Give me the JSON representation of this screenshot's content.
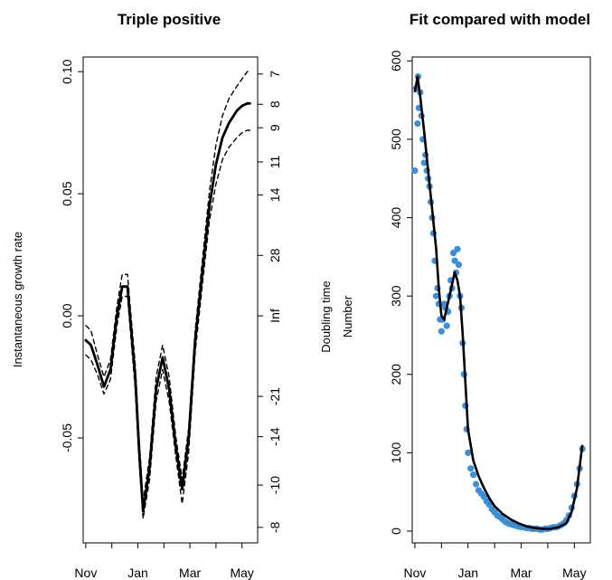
{
  "chart_data": [
    {
      "type": "line",
      "title": "Triple positive",
      "ylabel": "Instantaneous growth rate",
      "y2label": "Doubling time",
      "x_ticks": [
        "Nov",
        "Jan",
        "Mar",
        "May"
      ],
      "y_ticks": [
        "-0.05",
        "0.00",
        "0.05",
        "0.10"
      ],
      "y_tick_values": [
        -0.05,
        0.0,
        0.05,
        0.1
      ],
      "y2_ticks": [
        "7",
        "8",
        "9",
        "11",
        "14",
        "28",
        "Inf",
        "-21",
        "-14",
        "-10",
        "-8"
      ],
      "y2_tick_values": [
        7,
        8,
        9,
        11,
        14,
        28,
        "Inf",
        -21,
        -14,
        -10,
        -8
      ],
      "x_unit": "month index (Nov = 0)",
      "xlim": [
        -0.1,
        6.6
      ],
      "ylim": [
        -0.093,
        0.106
      ],
      "grid": false,
      "series": [
        {
          "line_style": "solid",
          "x": [
            0,
            0.2,
            0.45,
            0.7,
            0.95,
            1.2,
            1.4,
            1.6,
            1.9,
            2.05,
            2.2,
            2.45,
            2.7,
            2.95,
            3.2,
            3.45,
            3.7,
            3.95,
            4.2,
            4.5,
            4.75,
            5.0,
            5.25,
            5.5,
            5.8,
            6.0,
            6.2,
            6.3
          ],
          "y": [
            -0.01,
            -0.012,
            -0.02,
            -0.029,
            -0.022,
            0.0,
            0.012,
            0.012,
            -0.025,
            -0.055,
            -0.08,
            -0.062,
            -0.03,
            -0.017,
            -0.03,
            -0.053,
            -0.071,
            -0.05,
            -0.01,
            0.02,
            0.045,
            0.062,
            0.073,
            0.079,
            0.084,
            0.086,
            0.087,
            0.087
          ]
        },
        {
          "line_style": "dashed",
          "x": [
            0,
            0.2,
            0.45,
            0.7,
            0.95,
            1.2,
            1.4,
            1.6,
            1.9,
            2.05,
            2.2,
            2.45,
            2.7,
            2.95,
            3.2,
            3.45,
            3.7,
            3.95,
            4.2,
            4.5,
            4.75,
            5.0,
            5.25,
            5.5,
            5.8,
            6.0,
            6.2,
            6.3
          ],
          "y": [
            -0.004,
            -0.006,
            -0.016,
            -0.025,
            -0.018,
            0.004,
            0.017,
            0.017,
            -0.02,
            -0.05,
            -0.076,
            -0.058,
            -0.025,
            -0.012,
            -0.025,
            -0.049,
            -0.067,
            -0.046,
            -0.006,
            0.025,
            0.051,
            0.07,
            0.082,
            0.089,
            0.094,
            0.097,
            0.1,
            0.1
          ]
        },
        {
          "line_style": "dashed",
          "x": [
            0,
            0.2,
            0.45,
            0.7,
            0.95,
            1.2,
            1.4,
            1.6,
            1.9,
            2.05,
            2.2,
            2.45,
            2.7,
            2.95,
            3.2,
            3.45,
            3.7,
            3.95,
            4.2,
            4.5,
            4.75,
            5.0,
            5.25,
            5.5,
            5.8,
            6.0,
            6.2,
            6.3
          ],
          "y": [
            -0.016,
            -0.018,
            -0.024,
            -0.032,
            -0.026,
            -0.004,
            0.008,
            0.008,
            -0.03,
            -0.06,
            -0.083,
            -0.067,
            -0.035,
            -0.022,
            -0.035,
            -0.057,
            -0.077,
            -0.056,
            -0.015,
            0.015,
            0.039,
            0.054,
            0.064,
            0.069,
            0.073,
            0.075,
            0.076,
            0.076
          ]
        }
      ]
    },
    {
      "type": "scatter",
      "title": "Fit compared with model",
      "ylabel": "Number",
      "x_ticks": [
        "Nov",
        "Jan",
        "Mar",
        "May"
      ],
      "y_ticks": [
        "0",
        "100",
        "200",
        "300",
        "400",
        "500",
        "600"
      ],
      "y_tick_values": [
        0,
        100,
        200,
        300,
        400,
        500,
        600
      ],
      "x_unit": "month index (Nov = 0)",
      "xlim": [
        -0.1,
        6.6
      ],
      "ylim": [
        -15,
        605
      ],
      "grid": false,
      "point_color": "#3a8fdb",
      "points": {
        "x": [
          0.0,
          0.05,
          0.1,
          0.12,
          0.15,
          0.2,
          0.25,
          0.3,
          0.35,
          0.4,
          0.45,
          0.5,
          0.55,
          0.6,
          0.65,
          0.7,
          0.75,
          0.8,
          0.85,
          0.9,
          0.95,
          1.0,
          1.05,
          1.1,
          1.15,
          1.2,
          1.25,
          1.3,
          1.35,
          1.4,
          1.45,
          1.5,
          1.55,
          1.6,
          1.65,
          1.7,
          1.75,
          1.8,
          1.85,
          1.9,
          1.95,
          2.0,
          2.1,
          2.2,
          2.3,
          2.4,
          2.5,
          2.6,
          2.7,
          2.8,
          2.9,
          3.0,
          3.1,
          3.2,
          3.3,
          3.4,
          3.5,
          3.6,
          3.7,
          3.8,
          3.9,
          4.0,
          4.1,
          4.2,
          4.3,
          4.4,
          4.5,
          4.6,
          4.7,
          4.8,
          4.9,
          5.0,
          5.1,
          5.2,
          5.3,
          5.4,
          5.5,
          5.6,
          5.7,
          5.8,
          5.9,
          6.0,
          6.1,
          6.2,
          6.3
        ],
        "y": [
          460,
          565,
          520,
          580,
          540,
          560,
          530,
          500,
          470,
          480,
          460,
          450,
          440,
          420,
          400,
          380,
          345,
          300,
          310,
          290,
          270,
          255,
          270,
          290,
          285,
          262,
          280,
          300,
          320,
          310,
          355,
          345,
          330,
          360,
          340,
          300,
          285,
          240,
          200,
          160,
          130,
          100,
          80,
          72,
          60,
          52,
          48,
          44,
          38,
          34,
          28,
          24,
          20,
          18,
          15,
          12,
          10,
          9,
          8,
          7,
          6,
          5,
          5,
          4,
          4,
          3,
          3,
          3,
          2,
          2,
          3,
          3,
          4,
          5,
          5,
          6,
          8,
          10,
          14,
          20,
          30,
          45,
          60,
          80,
          105
        ]
      },
      "fit_line": {
        "x": [
          0.0,
          0.1,
          0.2,
          0.35,
          0.5,
          0.65,
          0.8,
          0.9,
          1.0,
          1.1,
          1.2,
          1.3,
          1.4,
          1.5,
          1.6,
          1.7,
          1.8,
          1.9,
          2.0,
          2.2,
          2.4,
          2.6,
          2.8,
          3.0,
          3.3,
          3.6,
          3.9,
          4.2,
          4.5,
          4.8,
          5.1,
          5.4,
          5.7,
          5.9,
          6.1,
          6.3
        ],
        "y": [
          560,
          580,
          555,
          510,
          460,
          410,
          360,
          310,
          275,
          270,
          285,
          300,
          315,
          330,
          320,
          300,
          250,
          190,
          130,
          90,
          70,
          55,
          42,
          32,
          22,
          15,
          10,
          6,
          4,
          3,
          3,
          5,
          10,
          25,
          55,
          110
        ]
      }
    }
  ]
}
